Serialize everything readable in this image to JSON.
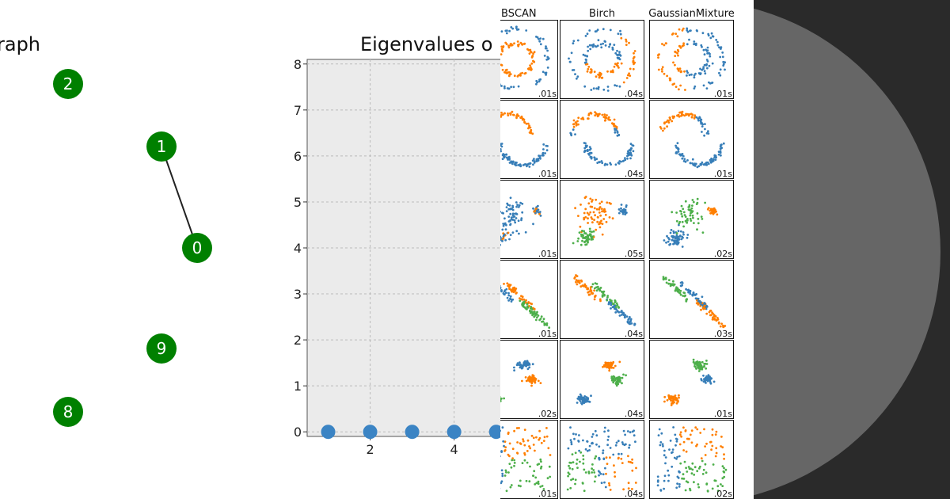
{
  "graph": {
    "title": "raph",
    "nodes": [
      "2",
      "1",
      "0",
      "9",
      "8"
    ]
  },
  "chart_data": {
    "type": "scatter",
    "title": "Eigenvalues o",
    "x": [
      1,
      2,
      3,
      4,
      5
    ],
    "values": [
      0,
      0,
      0,
      0,
      0
    ],
    "color": "#3b84c4",
    "xlim": [
      0.5,
      5.1
    ],
    "ylim": [
      -0.1,
      8.1
    ],
    "xticks": [
      2,
      4
    ],
    "yticks": [
      0,
      1,
      2,
      3,
      4,
      5,
      6,
      7,
      8
    ],
    "grid": true
  },
  "clustering": {
    "columns": [
      "BSCAN",
      "Birch",
      "GaussianMixture"
    ],
    "times": [
      [
        ".01s",
        ".04s",
        ".01s"
      ],
      [
        ".01s",
        ".04s",
        ".01s"
      ],
      [
        ".01s",
        ".05s",
        ".02s"
      ],
      [
        ".01s",
        ".04s",
        ".03s"
      ],
      [
        ".02s",
        ".04s",
        ".01s"
      ],
      [
        ".01s",
        ".04s",
        ".02s"
      ]
    ]
  }
}
